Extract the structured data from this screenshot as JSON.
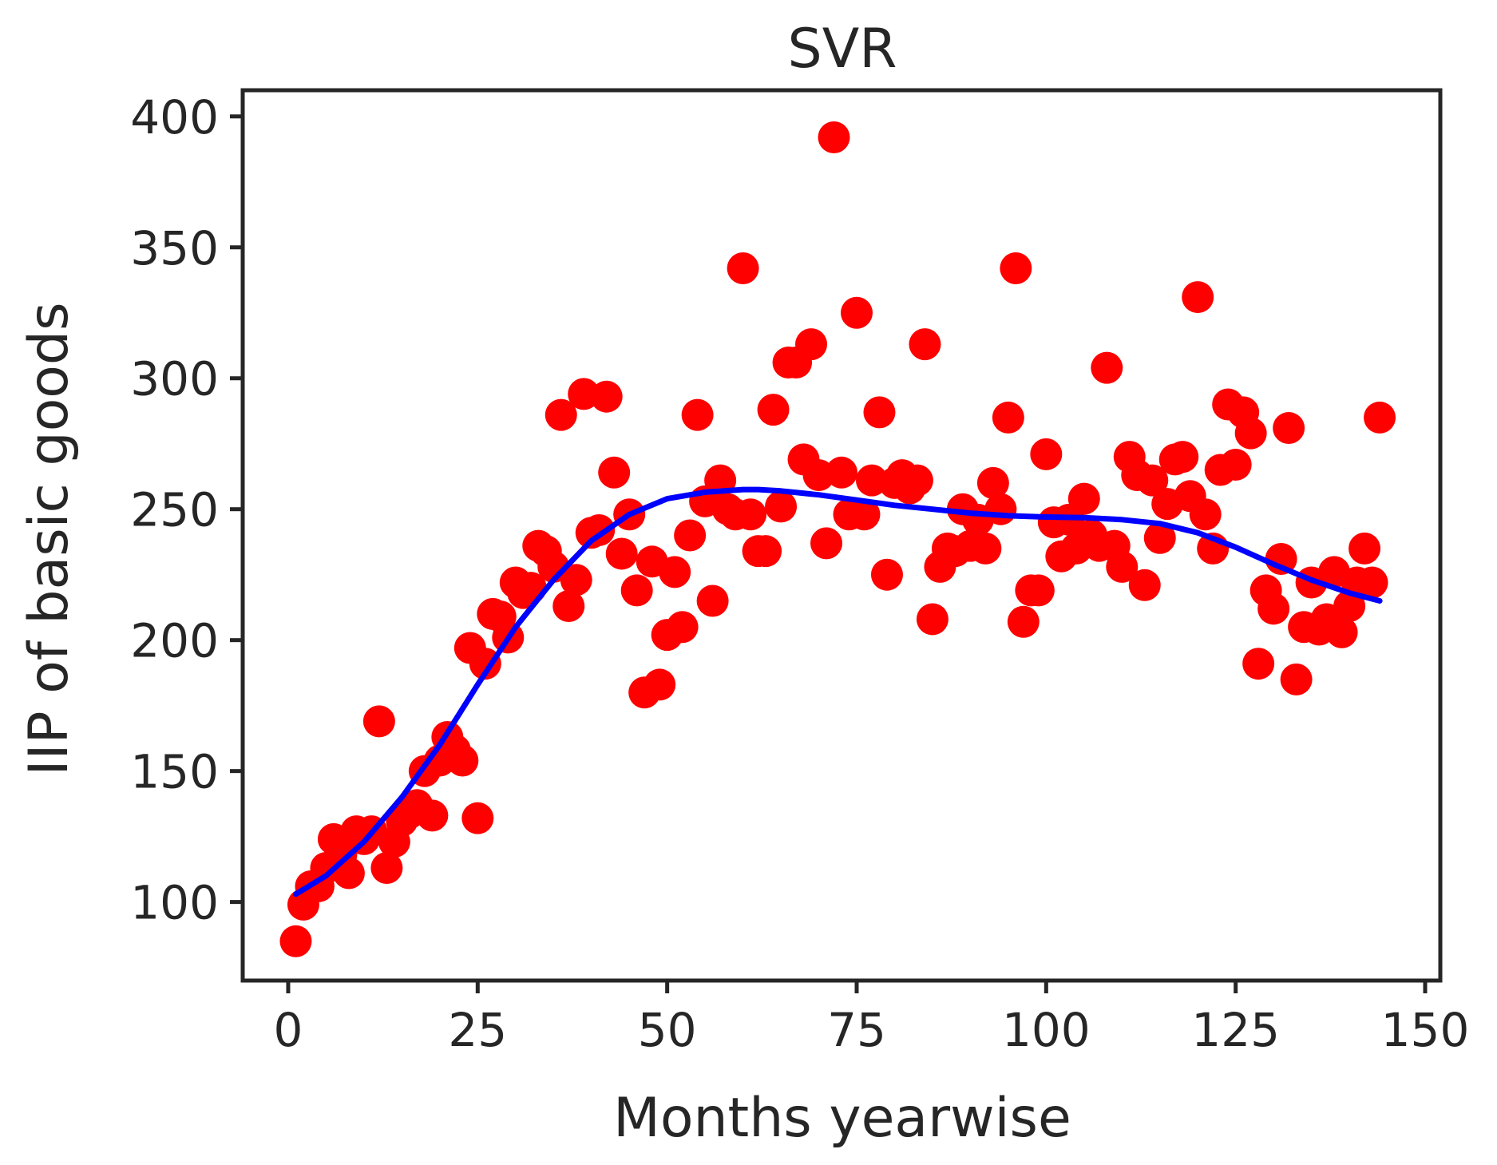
{
  "chart_data": {
    "type": "scatter",
    "title": "SVR",
    "xlabel": "Months yearwise",
    "ylabel": "IIP of basic goods",
    "xlim": [
      -6,
      152
    ],
    "ylim": [
      70,
      410
    ],
    "xticks": [
      0,
      25,
      50,
      75,
      100,
      125,
      150
    ],
    "yticks": [
      100,
      150,
      200,
      250,
      300,
      350,
      400
    ],
    "grid": false,
    "legend": "none",
    "colors": {
      "points": "#ff0000",
      "line": "#0000ff",
      "axes": "#262626"
    },
    "series": [
      {
        "type": "scatter",
        "x": [
          1,
          2,
          3,
          4,
          5,
          6,
          7,
          8,
          9,
          10,
          11,
          12,
          13,
          14,
          15,
          16,
          17,
          18,
          19,
          20,
          21,
          22,
          23,
          24,
          25,
          26,
          27,
          28,
          29,
          30,
          31,
          32,
          33,
          34,
          35,
          36,
          37,
          38,
          39,
          40,
          41,
          42,
          43,
          44,
          45,
          46,
          47,
          48,
          49,
          50,
          51,
          52,
          53,
          54,
          55,
          56,
          57,
          58,
          59,
          60,
          61,
          62,
          63,
          64,
          65,
          66,
          67,
          68,
          69,
          70,
          71,
          72,
          73,
          74,
          75,
          76,
          77,
          78,
          79,
          80,
          81,
          82,
          83,
          84,
          85,
          86,
          87,
          88,
          89,
          90,
          91,
          92,
          93,
          94,
          95,
          96,
          97,
          98,
          99,
          100,
          101,
          102,
          103,
          104,
          105,
          106,
          107,
          108,
          109,
          110,
          111,
          112,
          113,
          114,
          115,
          116,
          117,
          118,
          119,
          120,
          121,
          122,
          123,
          124,
          125,
          126,
          127,
          128,
          129,
          130,
          131,
          132,
          133,
          134,
          135,
          136,
          137,
          138,
          139,
          140,
          141,
          142,
          143,
          144
        ],
        "y": [
          85,
          99,
          106,
          106,
          113,
          124,
          118,
          111,
          127,
          124,
          127,
          169,
          113,
          123,
          131,
          134,
          137,
          150,
          133,
          154,
          163,
          158,
          154,
          197,
          132,
          191,
          210,
          209,
          201,
          222,
          218,
          220,
          236,
          234,
          228,
          286,
          213,
          223,
          294,
          241,
          242,
          293,
          264,
          233,
          248,
          219,
          180,
          230,
          183,
          202,
          226,
          205,
          240,
          286,
          253,
          215,
          261,
          250,
          248,
          342,
          248,
          234,
          234,
          288,
          251,
          306,
          306,
          269,
          313,
          263,
          237,
          392,
          264,
          248,
          325,
          248,
          261,
          287,
          225,
          260,
          263,
          258,
          261,
          313,
          208,
          228,
          235,
          234,
          250,
          236,
          246,
          235,
          260,
          250,
          285,
          342,
          207,
          219,
          219,
          271,
          245,
          232,
          246,
          235,
          254,
          240,
          236,
          304,
          236,
          228,
          270,
          263,
          221,
          261,
          239,
          252,
          269,
          270,
          255,
          331,
          248,
          235,
          265,
          290,
          267,
          287,
          279,
          191,
          219,
          212,
          231,
          281,
          185,
          205,
          222,
          204,
          208,
          226,
          203,
          213,
          222,
          235,
          222,
          285
        ]
      },
      {
        "type": "line",
        "x": [
          1,
          5,
          10,
          15,
          20,
          25,
          30,
          35,
          40,
          45,
          50,
          55,
          60,
          62,
          65,
          70,
          75,
          80,
          85,
          90,
          95,
          100,
          105,
          110,
          115,
          120,
          125,
          130,
          135,
          140,
          144
        ],
        "y": [
          103,
          110,
          123,
          140,
          160,
          183,
          205,
          223,
          238,
          248,
          254,
          256.5,
          257.5,
          257.5,
          257,
          255.5,
          253.5,
          251.5,
          250,
          248.5,
          247.5,
          247,
          246.8,
          246,
          244.5,
          241,
          235.5,
          229,
          223,
          218,
          215
        ]
      }
    ]
  }
}
